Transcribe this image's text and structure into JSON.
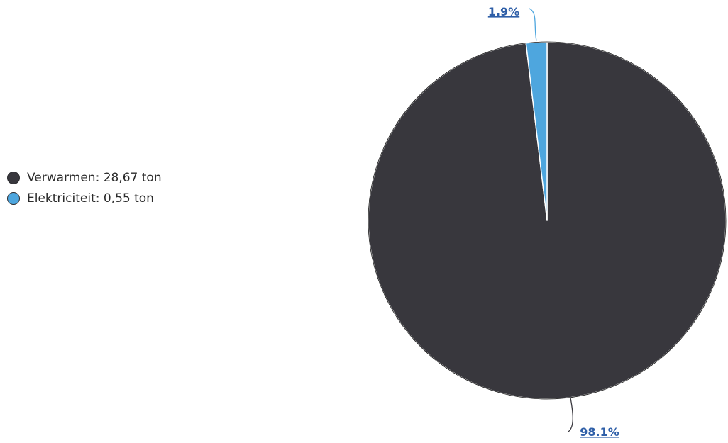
{
  "colors": {
    "verwarmen": "#38373d",
    "elektriciteit": "#4ea6de",
    "label": "#2f5fa8",
    "connector": "#2f5fa8",
    "outline": "#111111"
  },
  "chart_data": {
    "type": "pie",
    "title": "",
    "categories": [
      "Verwarmen",
      "Elektriciteit"
    ],
    "values": [
      28.67,
      0.55
    ],
    "unit": "ton",
    "percent_labels": [
      "98.1%",
      "1.9%"
    ],
    "legend": [
      {
        "text": "Verwarmen: 28,67 ton",
        "color": "#38373d"
      },
      {
        "text": "Elektriciteit: 0,55 ton",
        "color": "#4ea6de"
      }
    ],
    "legend_position": "left"
  }
}
